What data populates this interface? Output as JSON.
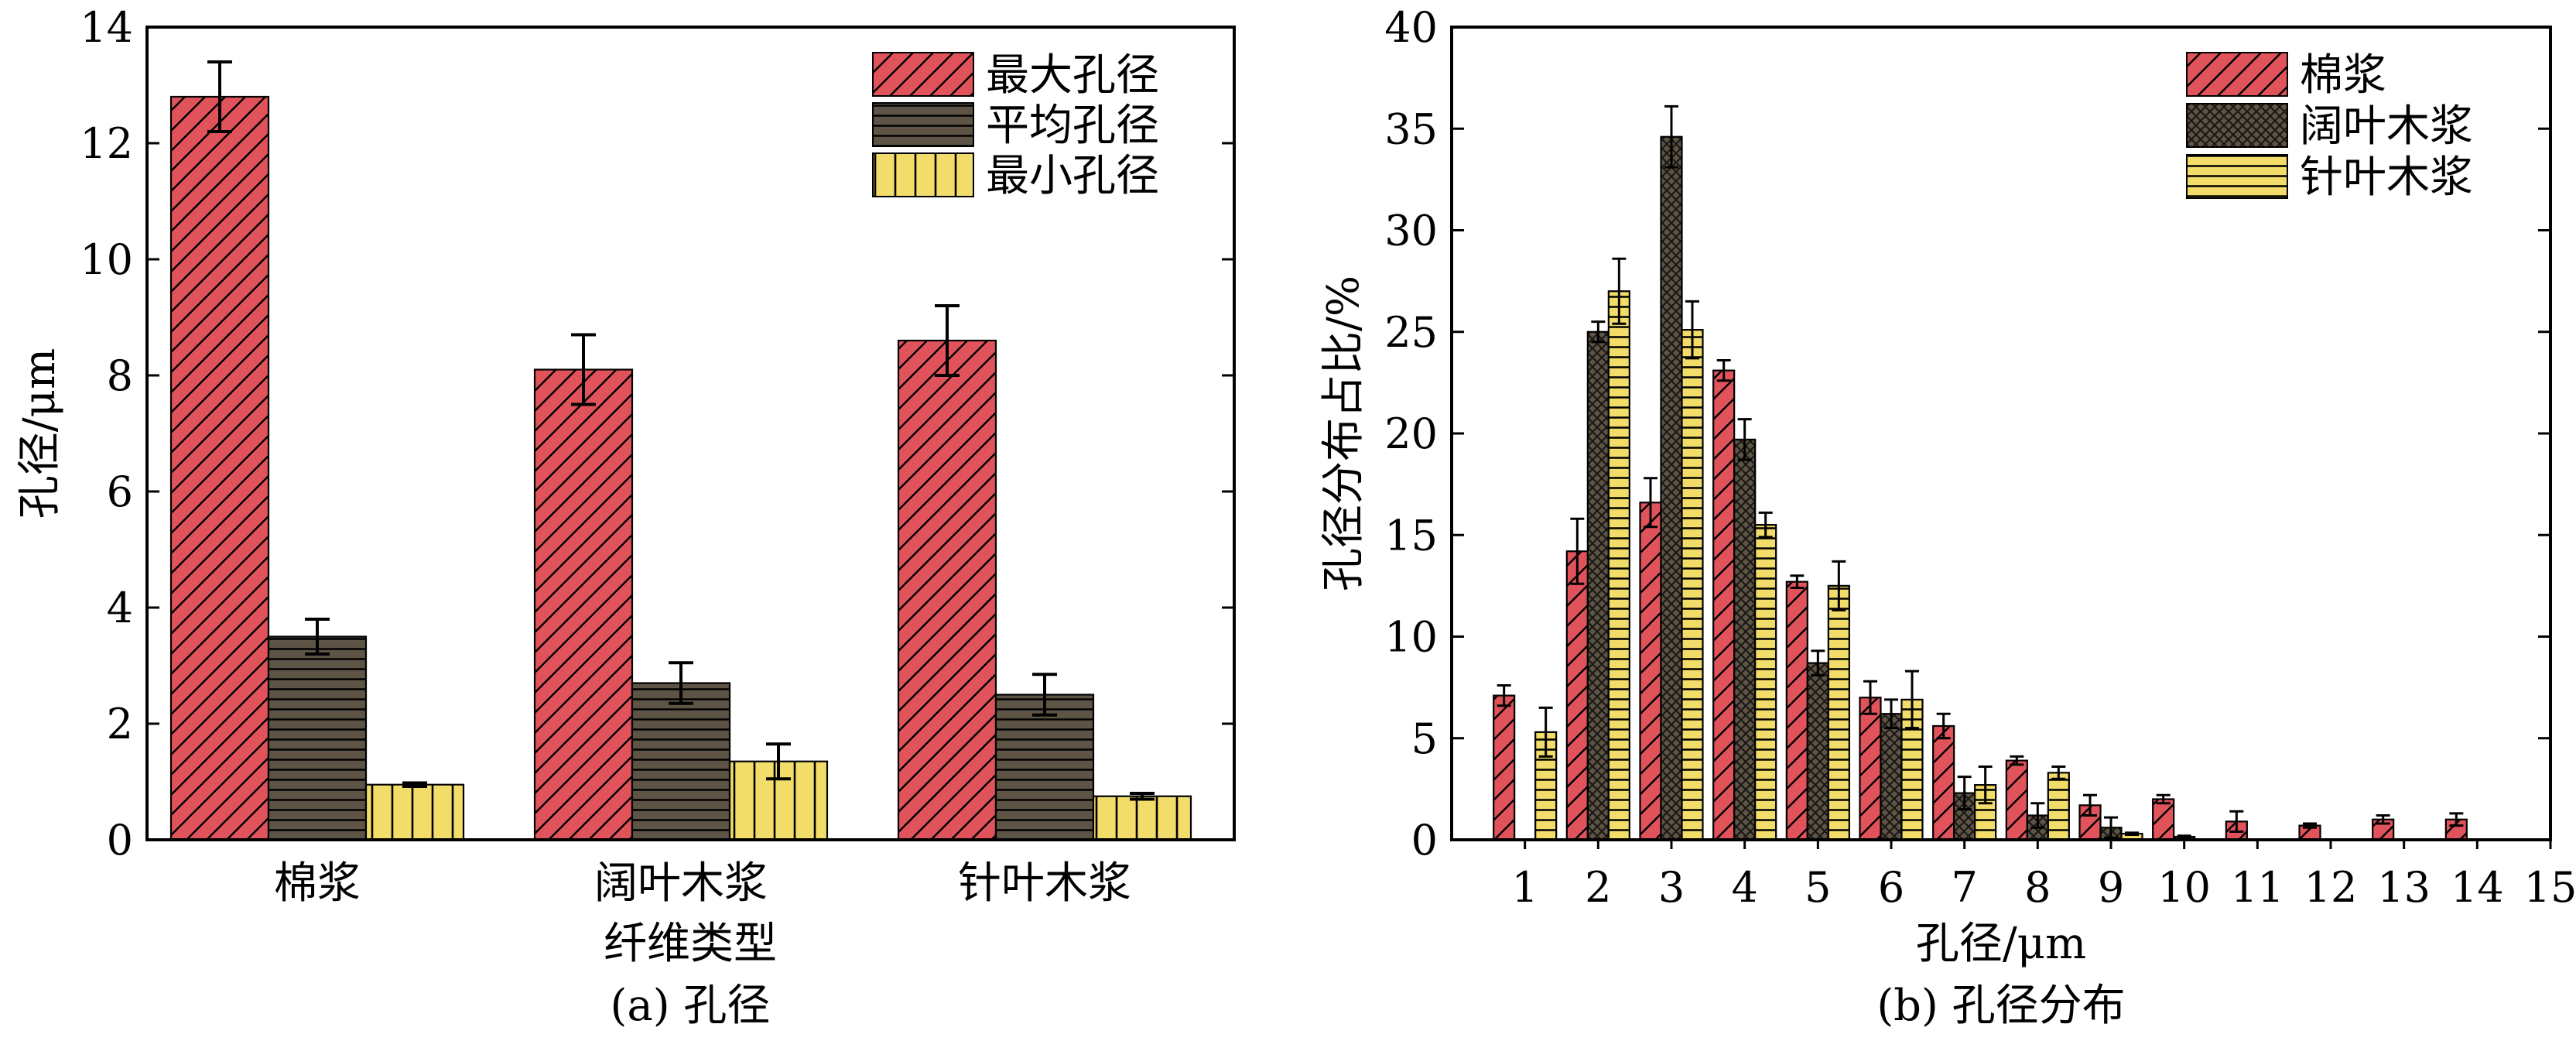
{
  "colors": {
    "red": "#e0535b",
    "dark": "#5d5446",
    "yellow": "#f2dc6a",
    "axis": "#000000"
  },
  "chart_data": [
    {
      "type": "bar",
      "caption": "(a) 孔径",
      "xlabel": "纤维类型",
      "ylabel": "孔径/μm",
      "ylim": [
        0,
        14
      ],
      "yticks": [
        "0",
        "2",
        "4",
        "6",
        "8",
        "10",
        "12",
        "14"
      ],
      "categories": [
        "棉浆",
        "阔叶木浆",
        "针叶木浆"
      ],
      "legend_position": "top-right",
      "series": [
        {
          "name": "最大孔径",
          "values": [
            12.8,
            8.1,
            8.6
          ],
          "errors": [
            0.6,
            0.6,
            0.6
          ],
          "pattern": "diagonal",
          "color": "#e0535b"
        },
        {
          "name": "平均孔径",
          "values": [
            3.5,
            2.7,
            2.5
          ],
          "errors": [
            0.3,
            0.35,
            0.35
          ],
          "pattern": "horizontal",
          "color": "#5d5446"
        },
        {
          "name": "最小孔径",
          "values": [
            0.95,
            1.35,
            0.75
          ],
          "errors": [
            0.03,
            0.3,
            0.05
          ],
          "pattern": "vertical",
          "color": "#f2dc6a"
        }
      ]
    },
    {
      "type": "bar",
      "caption": "(b) 孔径分布",
      "xlabel": "孔径/μm",
      "ylabel": "孔径分布占比/%",
      "ylim": [
        0,
        40
      ],
      "xlim": [
        0,
        15
      ],
      "yticks": [
        "0",
        "5",
        "10",
        "15",
        "20",
        "25",
        "30",
        "35",
        "40"
      ],
      "xticks": [
        "1",
        "2",
        "3",
        "4",
        "5",
        "6",
        "7",
        "8",
        "9",
        "10",
        "11",
        "12",
        "13",
        "14",
        "15"
      ],
      "legend_position": "top-right",
      "series": [
        {
          "name": "棉浆",
          "pattern": "diagonal",
          "color": "#e0535b",
          "values": [
            7.1,
            14.2,
            16.6,
            23.1,
            12.7,
            7.0,
            5.6,
            3.9,
            1.7,
            2.0,
            0.9,
            0.7,
            1.0,
            1.0
          ],
          "errors": [
            0.5,
            1.6,
            1.2,
            0.5,
            0.3,
            0.8,
            0.6,
            0.2,
            0.5,
            0.2,
            0.5,
            0.1,
            0.2,
            0.3
          ]
        },
        {
          "name": "阔叶木浆",
          "pattern": "crosshatch",
          "color": "#5d5446",
          "values": [
            0,
            25.0,
            34.6,
            19.7,
            8.7,
            6.2,
            2.3,
            1.2,
            0.6,
            0.15,
            0,
            0,
            0,
            0
          ],
          "errors": [
            0,
            0.5,
            1.5,
            1.0,
            0.6,
            0.7,
            0.8,
            0.6,
            0.5,
            0.05,
            0,
            0,
            0,
            0
          ]
        },
        {
          "name": "针叶木浆",
          "pattern": "horizontal",
          "color": "#f2dc6a",
          "values": [
            5.3,
            27.0,
            25.1,
            15.5,
            12.5,
            6.9,
            2.7,
            3.3,
            0.3,
            0,
            0,
            0,
            0,
            0
          ],
          "errors": [
            1.2,
            1.6,
            1.4,
            0.6,
            1.2,
            1.4,
            0.9,
            0.3,
            0.05,
            0,
            0,
            0,
            0,
            0
          ]
        }
      ]
    }
  ]
}
